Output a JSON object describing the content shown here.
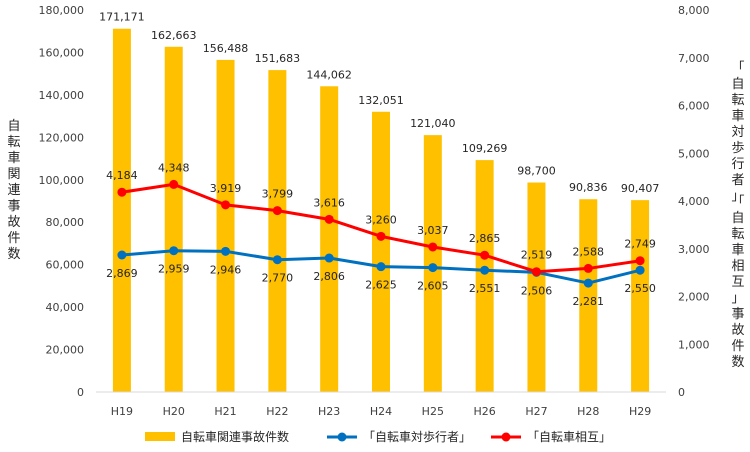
{
  "chart_data": {
    "type": "bar",
    "categories": [
      "H19",
      "H20",
      "H21",
      "H22",
      "H23",
      "H24",
      "H25",
      "H26",
      "H27",
      "H28",
      "H29"
    ],
    "series": [
      {
        "name": "自転車関連事故件数",
        "kind": "bar",
        "axis": "left",
        "color": "#FFC000",
        "values": [
          171171,
          162663,
          156488,
          151683,
          144062,
          132051,
          121040,
          109269,
          98700,
          90836,
          90407
        ],
        "labels": [
          "171,171",
          "162,663",
          "156,488",
          "151,683",
          "144,062",
          "132,051",
          "121,040",
          "109,269",
          "98,700",
          "90,836",
          "90,407"
        ]
      },
      {
        "name": "「自転車対歩行者」",
        "kind": "line",
        "axis": "right",
        "color": "#0070C0",
        "values": [
          2869,
          2959,
          2946,
          2770,
          2806,
          2625,
          2605,
          2551,
          2506,
          2281,
          2550
        ],
        "labels": [
          "2,869",
          "2,959",
          "2,946",
          "2,770",
          "2,806",
          "2,625",
          "2,605",
          "2,551",
          "2,506",
          "2,281",
          "2,550"
        ]
      },
      {
        "name": "「自転車相互」",
        "kind": "line",
        "axis": "right",
        "color": "#FF0000",
        "values": [
          4184,
          4348,
          3919,
          3799,
          3616,
          3260,
          3037,
          2865,
          2519,
          2588,
          2749
        ],
        "labels": [
          "4,184",
          "4,348",
          "3,919",
          "3,799",
          "3,616",
          "3,260",
          "3,037",
          "2,865",
          "2,519",
          "2,588",
          "2,749"
        ]
      }
    ],
    "y_left": {
      "label": "自転車関連事故件数",
      "ylim": [
        0,
        180000
      ],
      "ticks": [
        "0",
        "20,000",
        "40,000",
        "60,000",
        "80,000",
        "100,000",
        "120,000",
        "140,000",
        "160,000",
        "180,000"
      ]
    },
    "y_right": {
      "label_lines": [
        "「自転車対歩行者」",
        "「自転車相互」事故件数"
      ],
      "ylim": [
        0,
        8000
      ],
      "ticks": [
        "0",
        "1,000",
        "2,000",
        "3,000",
        "4,000",
        "5,000",
        "6,000",
        "7,000",
        "8,000"
      ]
    },
    "grid": false,
    "legend_position": "bottom"
  }
}
